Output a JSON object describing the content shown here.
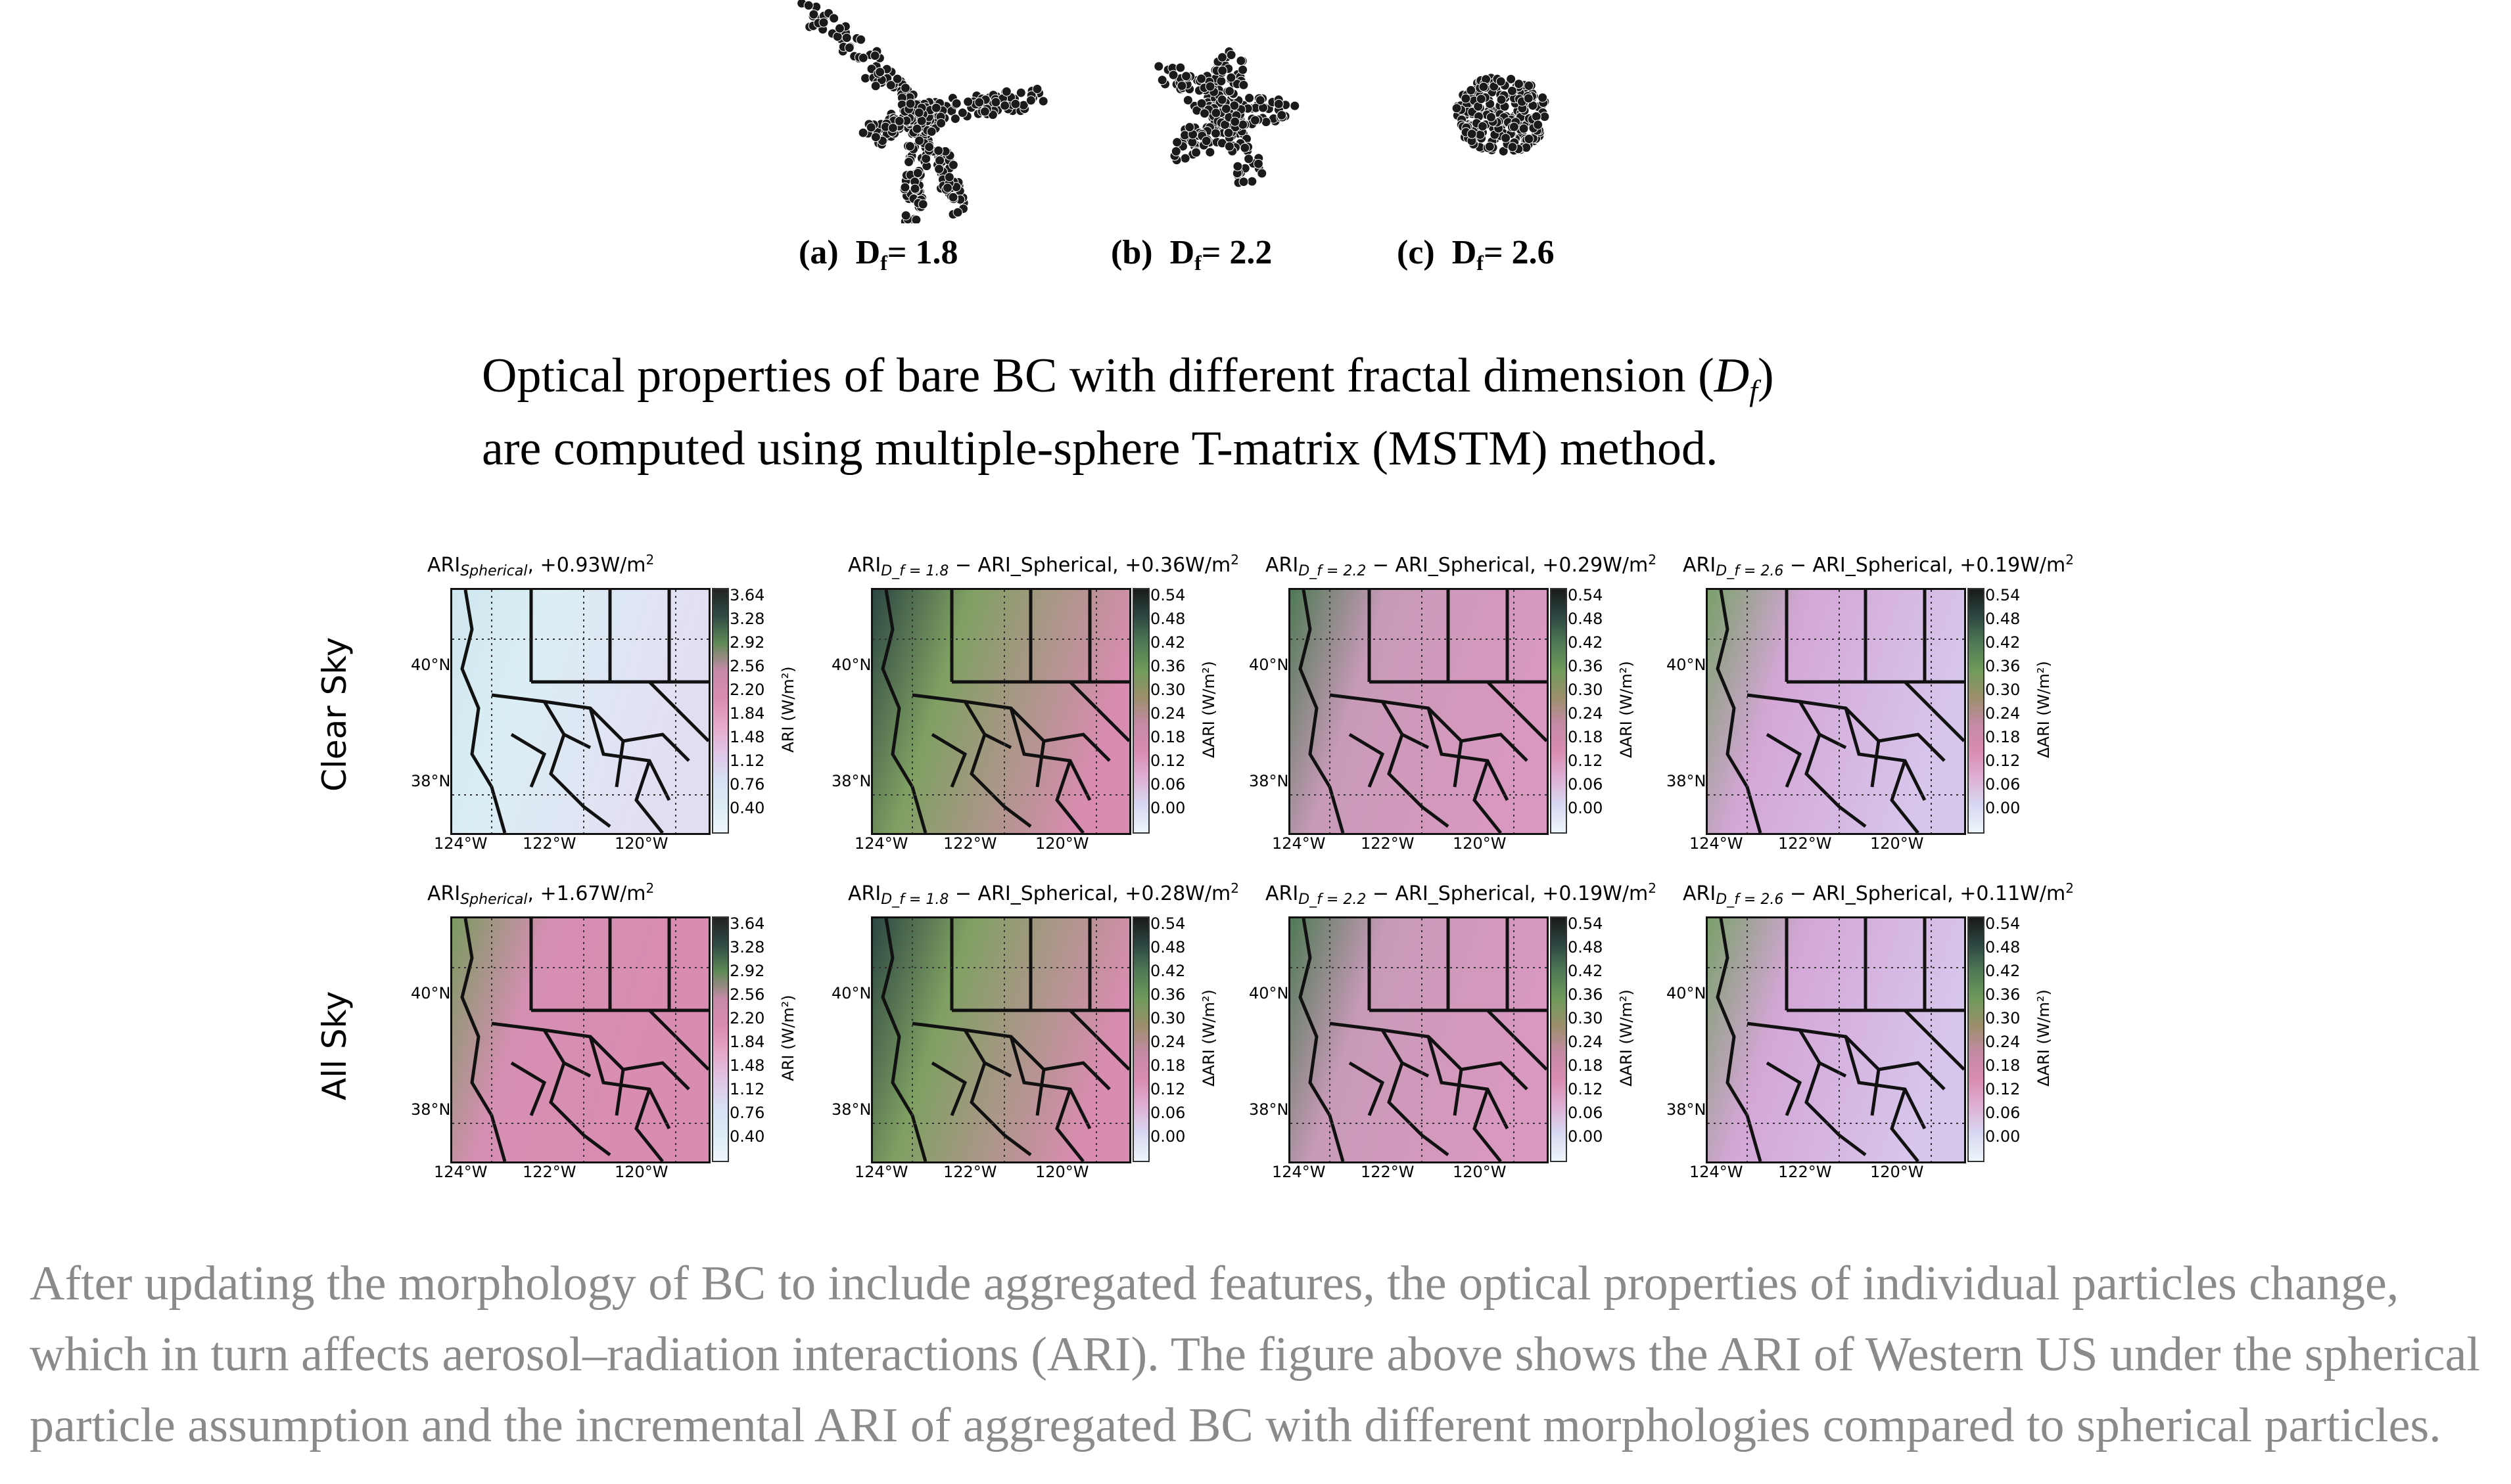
{
  "aggregates": [
    {
      "prefix": "(a)",
      "d": "D",
      "sub": "f",
      "value": "= 1.8",
      "df": 1.8
    },
    {
      "prefix": "(b)",
      "d": "D",
      "sub": "f",
      "value": "= 2.2",
      "df": 2.2
    },
    {
      "prefix": "(c)",
      "d": "D",
      "sub": "f",
      "value": "= 2.6",
      "df": 2.6
    }
  ],
  "caption": {
    "line1_text": "Optical properties of bare BC with different fractal dimension (",
    "line1_math": "D",
    "line1_math_sub": "f",
    "line1_close": ")",
    "line2": "are computed using multiple-sphere T-matrix (MSTM) method."
  },
  "rows": [
    "Clear Sky",
    "All Sky"
  ],
  "panels": [
    [
      {
        "title_main": "ARI",
        "title_sub": "Spherical",
        "title_rest": ",  +0.93W/m",
        "sup": "2",
        "minus": ""
      },
      {
        "title_main": "ARI",
        "title_sub": "D_f = 1.8",
        "title_rest": "+0.36W/m",
        "sup": "2",
        "minus": " − ARI_Spherical, "
      },
      {
        "title_main": "ARI",
        "title_sub": "D_f = 2.2",
        "title_rest": "+0.29W/m",
        "sup": "2",
        "minus": " − ARI_Spherical, "
      },
      {
        "title_main": "ARI",
        "title_sub": "D_f = 2.6",
        "title_rest": "+0.19W/m",
        "sup": "2",
        "minus": " − ARI_Spherical, "
      }
    ],
    [
      {
        "title_main": "ARI",
        "title_sub": "Spherical",
        "title_rest": ",  +1.67W/m",
        "sup": "2",
        "minus": ""
      },
      {
        "title_main": "ARI",
        "title_sub": "D_f = 1.8",
        "title_rest": "+0.28W/m",
        "sup": "2",
        "minus": " − ARI_Spherical, "
      },
      {
        "title_main": "ARI",
        "title_sub": "D_f = 2.2",
        "title_rest": "+0.19W/m",
        "sup": "2",
        "minus": " − ARI_Spherical, "
      },
      {
        "title_main": "ARI",
        "title_sub": "D_f = 2.6",
        "title_rest": "+0.11W/m",
        "sup": "2",
        "minus": " − ARI_Spherical, "
      }
    ]
  ],
  "colorbars": {
    "ari": {
      "ticks": [
        "3.64",
        "3.28",
        "2.92",
        "2.56",
        "2.20",
        "1.84",
        "1.48",
        "1.12",
        "0.76",
        "0.40"
      ],
      "unit": "ARI (W/m²)"
    },
    "dari": {
      "ticks": [
        "0.54",
        "0.48",
        "0.42",
        "0.36",
        "0.30",
        "0.24",
        "0.18",
        "0.12",
        "0.06",
        "0.00"
      ],
      "unit": "ΔARI (W/m²)"
    }
  },
  "axes": {
    "lat": [
      "40°N",
      "38°N"
    ],
    "lon": [
      "124°W",
      "122°W",
      "120°W"
    ]
  },
  "colors": {
    "text_gray": "#8a8a8a",
    "map_pink": "#d98cb0",
    "map_green": "#5f8a55",
    "map_light": "#cfe6ee"
  },
  "paragraph": [
    "After updating the morphology of BC to include aggregated features, the optical properties of individual particles change,",
    "which in turn affects aerosol–radiation interactions (ARI). The figure above shows the ARI of Western US under the spherical",
    "particle assumption and the incremental ARI of aggregated BC with different morphologies compared to spherical particles."
  ]
}
